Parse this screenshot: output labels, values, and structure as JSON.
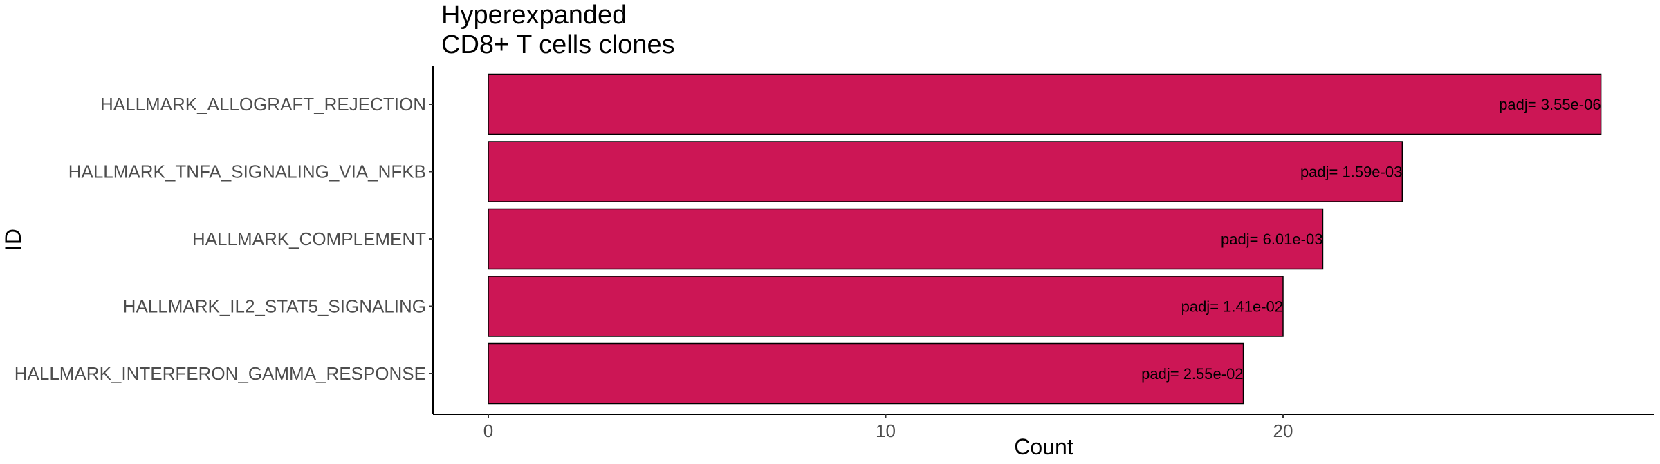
{
  "chart_data": {
    "type": "bar",
    "orientation": "horizontal",
    "title_lines": [
      "Hyperexpanded",
      "CD8+ T cells clones"
    ],
    "xlabel": "Count",
    "ylabel": "ID",
    "xlim": [
      0,
      29.2
    ],
    "x_ticks": [
      0,
      10,
      20
    ],
    "categories": [
      "HALLMARK_ALLOGRAFT_REJECTION",
      "HALLMARK_TNFA_SIGNALING_VIA_NFKB",
      "HALLMARK_COMPLEMENT",
      "HALLMARK_IL2_STAT5_SIGNALING",
      "HALLMARK_INTERFERON_GAMMA_RESPONSE"
    ],
    "values": [
      28,
      23,
      21,
      20,
      19
    ],
    "labels": [
      "padj= 3.55e-06",
      "padj= 1.59e-03",
      "padj= 6.01e-03",
      "padj= 1.41e-02",
      "padj= 2.55e-02"
    ],
    "bar_color": "#CC1655",
    "bar_edge_color": "#000000",
    "grid": false
  }
}
